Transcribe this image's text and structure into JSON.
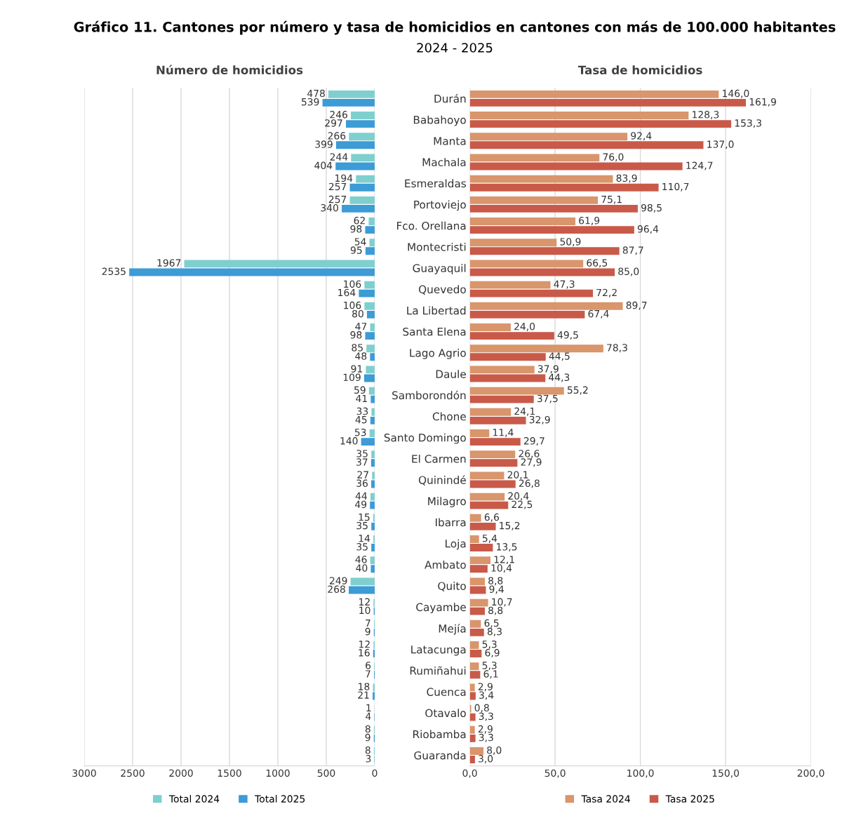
{
  "chart_data": [
    {
      "type": "bar",
      "orientation": "horizontal",
      "title": "Número de homicidios",
      "annotations": [
        "Gráfico 11. Cantones por número y tasa de homicidios en cantones con más de 100.000 habitantes",
        "2024 - 2025"
      ],
      "categories": [
        null,
        null,
        null,
        null,
        null,
        null,
        null,
        null,
        null,
        null,
        null,
        null,
        null,
        null,
        null,
        null,
        null,
        null,
        null,
        null,
        null,
        null,
        null,
        null,
        null,
        null,
        null,
        null,
        null,
        null,
        null,
        null
      ],
      "series": [
        {
          "name": "Total 2024",
          "color": "#7fcfcf",
          "values": [
            478,
            246,
            266,
            244,
            194,
            257,
            62,
            54,
            1967,
            106,
            106,
            47,
            85,
            91,
            59,
            33,
            53,
            35,
            27,
            44,
            15,
            14,
            46,
            249,
            12,
            7,
            12,
            6,
            18,
            1,
            8,
            8
          ]
        },
        {
          "name": "Total 2025",
          "color": "#3d9bd6",
          "values": [
            539,
            297,
            399,
            404,
            257,
            340,
            98,
            95,
            2535,
            164,
            80,
            98,
            48,
            109,
            41,
            45,
            140,
            37,
            36,
            49,
            35,
            35,
            40,
            268,
            10,
            9,
            16,
            7,
            21,
            4,
            9,
            3
          ]
        }
      ],
      "xlim": [
        3000,
        0
      ],
      "xticks": [
        3000,
        2500,
        2000,
        1500,
        1000,
        500,
        0
      ],
      "grid": "x",
      "legend": "bottom",
      "data_labels": true,
      "tick_labels": "x"
    },
    {
      "type": "bar",
      "orientation": "horizontal",
      "title": "Tasa de homicidios",
      "categories": [
        "Durán",
        "Babahoyo",
        "Manta",
        "Machala",
        "Esmeraldas",
        "Portoviejo",
        "Fco. Orellana",
        "Montecristi",
        "Guayaquil",
        "Quevedo",
        "La Libertad",
        "Santa Elena",
        "Lago Agrio",
        "Daule",
        "Samborondón",
        "Chone",
        "Santo Domingo",
        "El Carmen",
        "Quinindé",
        "Milagro",
        "Ibarra",
        "Loja",
        "Ambato",
        "Quito",
        "Cayambe",
        "Mejía",
        "Latacunga",
        "Rumiñahui",
        "Cuenca",
        "Otavalo",
        "Riobamba",
        "Guaranda"
      ],
      "series": [
        {
          "name": "Tasa 2024",
          "color": "#d9956b",
          "values": [
            146.0,
            128.3,
            92.4,
            76.0,
            83.9,
            75.1,
            61.9,
            50.9,
            66.5,
            47.3,
            89.7,
            24.0,
            78.3,
            37.9,
            55.2,
            24.1,
            11.4,
            26.6,
            20.1,
            20.4,
            6.6,
            5.4,
            12.1,
            8.8,
            10.7,
            6.5,
            5.3,
            5.3,
            2.9,
            0.8,
            2.9,
            8.0
          ],
          "value_labels": [
            "146,0",
            "128,3",
            "92,4",
            "76,0",
            "83,9",
            "75,1",
            "61,9",
            "50,9",
            "66,5",
            "47,3",
            "89,7",
            "24,0",
            "78,3",
            "37,9",
            "55,2",
            "24,1",
            "11,4",
            "26,6",
            "20,1",
            "20,4",
            "6,6",
            "5,4",
            "12,1",
            "8,8",
            "10,7",
            "6,5",
            "5,3",
            "5,3",
            "2,9",
            "0,8",
            "2,9",
            "8,0"
          ]
        },
        {
          "name": "Tasa 2025",
          "color": "#c95a49",
          "values": [
            161.9,
            153.3,
            137.0,
            124.7,
            110.7,
            98.5,
            96.4,
            87.7,
            85.0,
            72.2,
            67.4,
            49.5,
            44.5,
            44.3,
            37.5,
            32.9,
            29.7,
            27.9,
            26.8,
            22.5,
            15.2,
            13.5,
            10.4,
            9.4,
            8.8,
            8.3,
            6.9,
            6.1,
            3.4,
            3.3,
            3.3,
            3.0
          ],
          "value_labels": [
            "161,9",
            "153,3",
            "137,0",
            "124,7",
            "110,7",
            "98,5",
            "96,4",
            "87,7",
            "85,0",
            "72,2",
            "67,4",
            "49,5",
            "44,5",
            "44,3",
            "37,5",
            "32,9",
            "29,7",
            "27,9",
            "26,8",
            "22,5",
            "15,2",
            "13,5",
            "10,4",
            "9,4",
            "8,8",
            "8,3",
            "6,9",
            "6,1",
            "3,4",
            "3,3",
            "3,3",
            "3,0"
          ]
        }
      ],
      "xlim": [
        0,
        200
      ],
      "xticks": [
        {
          "value": 0,
          "label": "0,0"
        },
        {
          "value": 50,
          "label": "50,0"
        },
        {
          "value": 100,
          "label": "100,0"
        },
        {
          "value": 150,
          "label": "150,0"
        },
        {
          "value": 200,
          "label": "200,0"
        }
      ],
      "grid": "x",
      "legend": "bottom"
    }
  ]
}
